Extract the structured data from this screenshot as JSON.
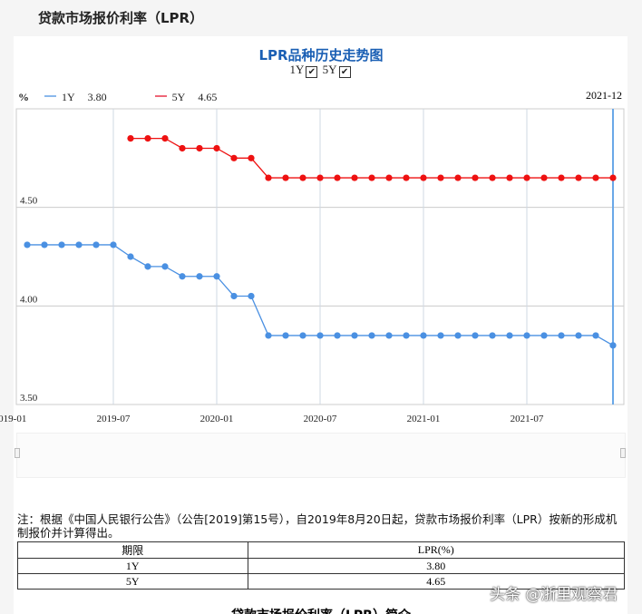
{
  "page_heading": "贷款市场报价利率（LPR）",
  "chart_data": {
    "type": "line",
    "title": "LPR品种历史走势图",
    "unit_label": "%",
    "toggles": [
      {
        "label": "1Y",
        "checked": true
      },
      {
        "label": "5Y",
        "checked": true
      }
    ],
    "latest_label": "2021-12",
    "x": [
      "2019-02",
      "2019-03",
      "2019-04",
      "2019-05",
      "2019-06",
      "2019-07",
      "2019-08",
      "2019-09",
      "2019-10",
      "2019-11",
      "2019-12",
      "2020-01",
      "2020-02",
      "2020-03",
      "2020-04",
      "2020-05",
      "2020-06",
      "2020-07",
      "2020-08",
      "2020-09",
      "2020-10",
      "2020-11",
      "2020-12",
      "2021-01",
      "2021-02",
      "2021-03",
      "2021-04",
      "2021-05",
      "2021-06",
      "2021-07",
      "2021-08",
      "2021-09",
      "2021-10",
      "2021-11",
      "2021-12"
    ],
    "series": [
      {
        "name": "1Y",
        "latest": "3.80",
        "color": "#4a90e2",
        "values": [
          4.31,
          4.31,
          4.31,
          4.31,
          4.31,
          4.31,
          4.25,
          4.2,
          4.2,
          4.15,
          4.15,
          4.15,
          4.05,
          4.05,
          3.85,
          3.85,
          3.85,
          3.85,
          3.85,
          3.85,
          3.85,
          3.85,
          3.85,
          3.85,
          3.85,
          3.85,
          3.85,
          3.85,
          3.85,
          3.85,
          3.85,
          3.85,
          3.85,
          3.85,
          3.8
        ]
      },
      {
        "name": "5Y",
        "latest": "4.65",
        "color": "#ee1111",
        "values": [
          null,
          null,
          null,
          null,
          null,
          null,
          4.85,
          4.85,
          4.85,
          4.8,
          4.8,
          4.8,
          4.75,
          4.75,
          4.65,
          4.65,
          4.65,
          4.65,
          4.65,
          4.65,
          4.65,
          4.65,
          4.65,
          4.65,
          4.65,
          4.65,
          4.65,
          4.65,
          4.65,
          4.65,
          4.65,
          4.65,
          4.65,
          4.65,
          4.65
        ]
      }
    ],
    "y_ticks": [
      "4.50",
      "4.00",
      "3.50"
    ],
    "x_ticks": [
      "2019-01",
      "2019-07",
      "2020-01",
      "2020-07",
      "2021-01",
      "2021-07"
    ],
    "ylim": [
      3.5,
      5.0
    ],
    "grid": true
  },
  "note": "注：根据《中国人民银行公告》（公告[2019]第15号），自2019年8月20日起，贷款市场报价利率（LPR）按新的形成机制报价并计算得出。",
  "table": {
    "headers": [
      "期限",
      "LPR(%)"
    ],
    "rows": [
      [
        "1Y",
        "3.80"
      ],
      [
        "5Y",
        "4.65"
      ]
    ]
  },
  "watermark": "头条 @浙里观察君",
  "next_section": "贷款市场报价利率（LPR）简介"
}
